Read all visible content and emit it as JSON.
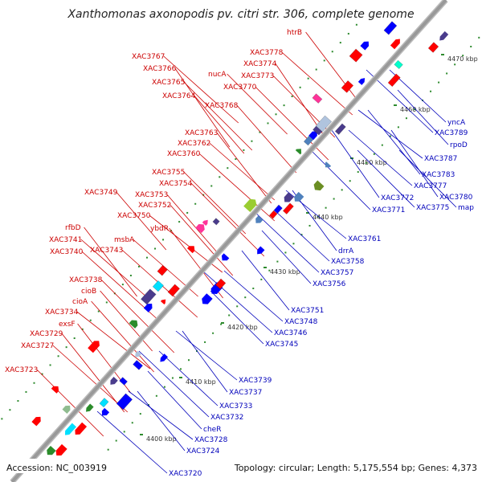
{
  "title": "Xanthomonas axonopodis pv. citri str. 306, complete genome",
  "footer": {
    "accession": "Accession: NC_003919",
    "summary": "Topology: circular; Length: 5,175,554 bp; Genes: 4,373"
  },
  "colors": {
    "forward_label": "#cc0000",
    "reverse_label": "#0000bb",
    "backbone": "#999999",
    "tick": "#2e8b2e"
  },
  "ticks": [
    "4400 kbp",
    "4410 kbp",
    "4420 kbp",
    "4430 kbp",
    "4440 kbp",
    "4450 kbp",
    "4460 kbp",
    "4470 kbp"
  ],
  "left_labels": [
    "htrB",
    "XAC3778",
    "XAC3767",
    "XAC3774",
    "XAC3766",
    "nucA",
    "XAC3773",
    "XAC3765",
    "XAC3770",
    "XAC3764",
    "XAC3768",
    "XAC3763",
    "XAC3762",
    "XAC3760",
    "XAC3755",
    "XAC3754",
    "XAC3749",
    "XAC3753",
    "XAC3752",
    "XAC3750",
    "ybdR",
    "rfbD",
    "msbA",
    "XAC3741",
    "XAC3743",
    "XAC3740",
    "XAC3738",
    "cioB",
    "cioA",
    "XAC3734",
    "exsF",
    "XAC3729",
    "XAC3727",
    "XAC3723"
  ],
  "right_labels": [
    "yncA",
    "XAC3789",
    "rpoD",
    "XAC3787",
    "XAC3783",
    "XAC3777",
    "XAC3780",
    "XAC3772",
    "XAC3775",
    "map",
    "XAC3771",
    "XAC3761",
    "drrA",
    "XAC3758",
    "XAC3757",
    "XAC3756",
    "XAC3751",
    "XAC3748",
    "XAC3746",
    "XAC3745",
    "XAC3739",
    "XAC3737",
    "XAC3733",
    "XAC3732",
    "cheR",
    "XAC3728",
    "XAC3724",
    "XAC3720"
  ]
}
